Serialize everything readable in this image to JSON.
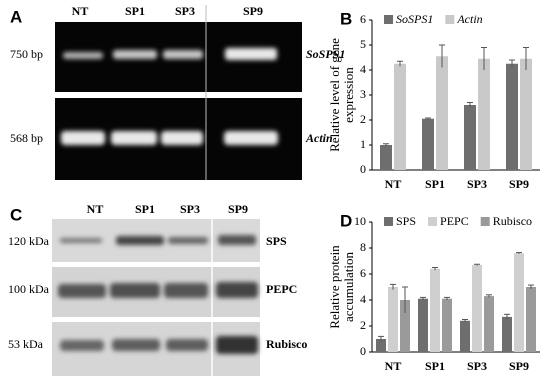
{
  "figure": {
    "panel_a": {
      "label": "A",
      "lanes": [
        "NT",
        "SP1",
        "SP3",
        "SP9"
      ],
      "rows": [
        {
          "size": "750 bp",
          "gene": "SoSPS1"
        },
        {
          "size": "568 bp",
          "gene": "Actin"
        }
      ]
    },
    "panel_c": {
      "label": "C",
      "lanes": [
        "NT",
        "SP1",
        "SP3",
        "SP9"
      ],
      "rows": [
        {
          "size": "120 kDa",
          "protein": "SPS"
        },
        {
          "size": "100 kDa",
          "protein": "PEPC"
        },
        {
          "size": "53 kDa",
          "protein": "Rubisco"
        }
      ]
    }
  },
  "chart_data": [
    {
      "type": "bar",
      "panel_label": "B",
      "y_label": "Relative level of gene expression",
      "categories": [
        "NT",
        "SP1",
        "SP3",
        "SP9"
      ],
      "series": [
        {
          "name": "SoSPS1",
          "color": "#6e6e6e",
          "values": [
            1.0,
            2.05,
            2.6,
            4.25
          ],
          "errors": [
            0.05,
            0.03,
            0.1,
            0.15
          ]
        },
        {
          "name": "Actin",
          "color": "#c9c9c9",
          "values": [
            4.25,
            4.55,
            4.45,
            4.45
          ],
          "errors": [
            0.1,
            0.45,
            0.45,
            0.45
          ]
        }
      ],
      "ylim": [
        0,
        6
      ],
      "yticks": [
        0,
        1,
        2,
        3,
        4,
        5,
        6
      ],
      "legend_italic": true
    },
    {
      "type": "bar",
      "panel_label": "D",
      "y_label": "Relative protein accumulation",
      "categories": [
        "NT",
        "SP1",
        "SP3",
        "SP9"
      ],
      "series": [
        {
          "name": "SPS",
          "color": "#6e6e6e",
          "values": [
            1.0,
            4.1,
            2.4,
            2.7
          ],
          "errors": [
            0.2,
            0.1,
            0.1,
            0.2
          ]
        },
        {
          "name": "PEPC",
          "color": "#cfcfcf",
          "values": [
            5.0,
            6.4,
            6.7,
            7.6
          ],
          "errors": [
            0.2,
            0.1,
            0.05,
            0.05
          ]
        },
        {
          "name": "Rubisco",
          "color": "#9a9a9a",
          "values": [
            4.0,
            4.1,
            4.3,
            5.0
          ],
          "errors": [
            1.0,
            0.1,
            0.1,
            0.15
          ]
        }
      ],
      "ylim": [
        0,
        10
      ],
      "yticks": [
        0,
        2,
        4,
        6,
        8,
        10
      ],
      "legend_italic": false
    }
  ]
}
